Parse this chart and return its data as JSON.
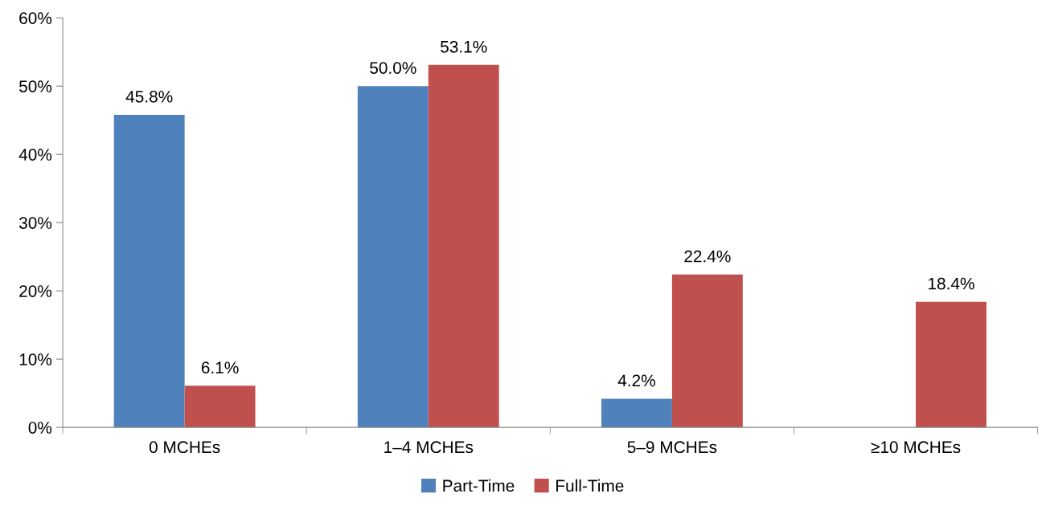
{
  "chart_data": {
    "type": "bar",
    "categories": [
      "0 MCHEs",
      "1–4 MCHEs",
      "5–9 MCHEs",
      "≥10 MCHEs"
    ],
    "series": [
      {
        "name": "Part-Time",
        "color": "#4f81bd",
        "values": [
          45.8,
          50.0,
          4.2,
          null
        ],
        "value_labels": [
          "45.8%",
          "50.0%",
          "4.2%",
          null
        ]
      },
      {
        "name": "Full-Time",
        "color": "#c0504d",
        "values": [
          6.1,
          53.1,
          22.4,
          18.4
        ],
        "value_labels": [
          "6.1%",
          "53.1%",
          "22.4%",
          "18.4%"
        ]
      }
    ],
    "ylim": [
      0,
      60
    ],
    "yticks": [
      {
        "value": 0,
        "label": "0%"
      },
      {
        "value": 10,
        "label": "10%"
      },
      {
        "value": 20,
        "label": "20%"
      },
      {
        "value": 30,
        "label": "30%"
      },
      {
        "value": 40,
        "label": "40%"
      },
      {
        "value": 50,
        "label": "50%"
      },
      {
        "value": 60,
        "label": "60%"
      }
    ],
    "grid": false,
    "legend": "bottom"
  }
}
